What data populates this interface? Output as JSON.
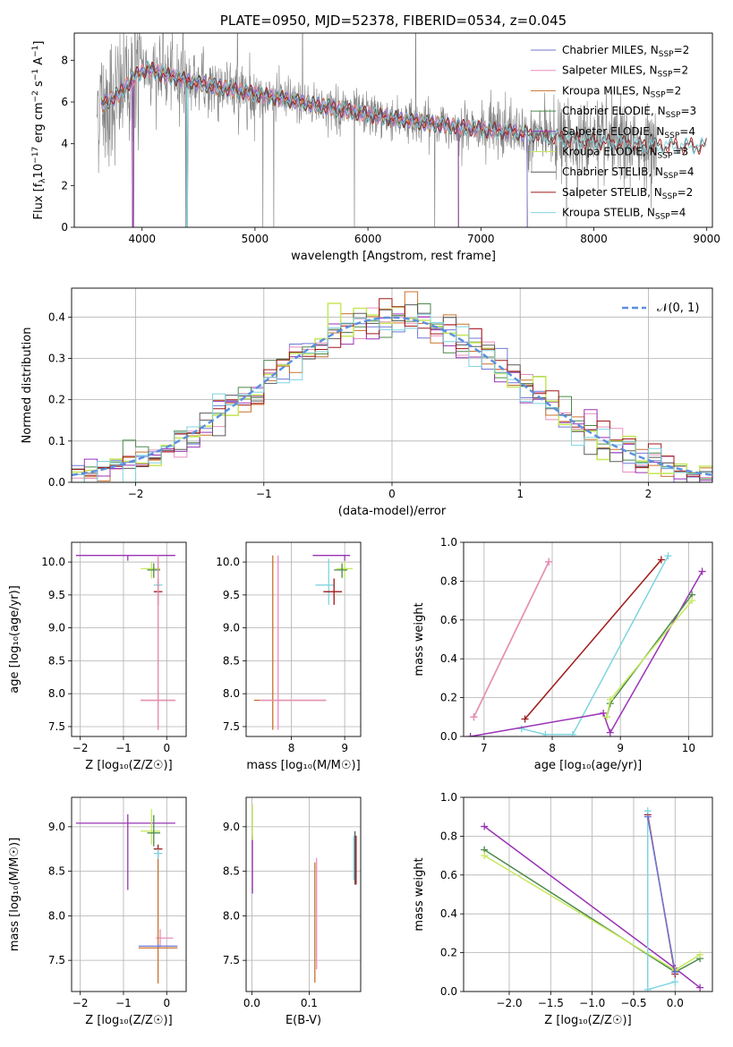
{
  "colors": {
    "Chabrier MILES": "#6f79d6",
    "Salpeter MILES": "#e88fbf",
    "Kroupa MILES": "#c9722c",
    "Chabrier ELODIE": "#4b8a4b",
    "Salpeter ELODIE": "#9a33b6",
    "Kroupa ELODIE": "#c8e85f",
    "Chabrier STELIB": "#5a5a5a",
    "Salpeter STELIB": "#a01818",
    "Kroupa STELIB": "#7fd4e0",
    "data_line": "#808080",
    "normal": "#5b8fe0",
    "grid": "#b0b0b0"
  },
  "chart_data": [
    {
      "type": "line",
      "title": "PLATE=0950, MJD=52378, FIBERID=0534, z=0.045",
      "xlabel": "wavelength [Angstrom, rest frame]",
      "ylabel_parts": {
        "base": "Flux [f",
        "sub": "λ",
        "mid": "10",
        "sup1": "−17",
        "rest": " erg cm",
        "sup2": "−2",
        "s": " s",
        "sup3": "−1",
        "a": " A",
        "sup4": "−1",
        "end": "]"
      },
      "xlim": [
        3400,
        9050
      ],
      "ylim": [
        0,
        9.3
      ],
      "xticks": [
        4000,
        5000,
        6000,
        7000,
        8000,
        9000
      ],
      "yticks": [
        0,
        2,
        4,
        6,
        8
      ],
      "legend_position": "upper right",
      "legend": [
        {
          "name": "Chabrier MILES",
          "n": "2"
        },
        {
          "name": "Salpeter MILES",
          "n": "2"
        },
        {
          "name": "Kroupa MILES",
          "n": "2"
        },
        {
          "name": "Chabrier ELODIE",
          "n": "3"
        },
        {
          "name": "Salpeter ELODIE",
          "n": "4"
        },
        {
          "name": "Kroupa ELODIE",
          "n": "3"
        },
        {
          "name": "Chabrier STELIB",
          "n": "4"
        },
        {
          "name": "Salpeter STELIB",
          "n": "2"
        },
        {
          "name": "Kroupa STELIB",
          "n": "4"
        }
      ],
      "legend_eq": "=",
      "legend_sub": "SSP",
      "legend_prefix": ", N",
      "data_range": [
        3600,
        8560
      ],
      "model_end": {
        "MILES": 7410,
        "ELODIE": 6800,
        "STELIB": 9000
      },
      "continuum": [
        [
          3650,
          5.9
        ],
        [
          3800,
          6.4
        ],
        [
          3950,
          7.3
        ],
        [
          4050,
          7.6
        ],
        [
          4200,
          7.3
        ],
        [
          4500,
          6.9
        ],
        [
          5000,
          6.4
        ],
        [
          5500,
          5.9
        ],
        [
          6000,
          5.4
        ],
        [
          6500,
          5.0
        ],
        [
          7000,
          4.7
        ],
        [
          7400,
          4.5
        ],
        [
          7800,
          4.2
        ],
        [
          8200,
          4.05
        ],
        [
          8500,
          3.9
        ]
      ]
    },
    {
      "type": "step",
      "xlabel": "(data-model)/error",
      "ylabel": "Normed distribution",
      "xlim": [
        -2.5,
        2.5
      ],
      "ylim": [
        0,
        0.47
      ],
      "xticks": [
        -2,
        -1,
        0,
        1,
        2
      ],
      "yticks": [
        0.0,
        0.1,
        0.2,
        0.3,
        0.4
      ],
      "legend": [
        {
          "name": "𝒩(0, 1)"
        }
      ],
      "bin_width": 0.1,
      "bins_start": -2.5,
      "reference": "standard normal"
    },
    {
      "type": "errorbar",
      "xlabel": "Z [log₁₀(Z/Z☉)]",
      "ylabel": "age  [log₁₀(age/yr)]",
      "xlim": [
        -2.2,
        0.45
      ],
      "ylim": [
        7.35,
        10.3
      ],
      "xticks": [
        -2,
        -1,
        0
      ],
      "yticks": [
        7.5,
        8.0,
        8.5,
        9.0,
        9.5,
        10.0
      ],
      "points": [
        {
          "model": "Salpeter ELODIE",
          "x": -0.9,
          "y": 10.1,
          "xerr": [
            1.2,
            1.1
          ],
          "yerr": [
            0.08,
            0
          ]
        },
        {
          "model": "Kroupa ELODIE",
          "x": -0.35,
          "y": 9.9,
          "xerr": [
            0.25,
            0.2
          ],
          "yerr": [
            0.15,
            0.1
          ]
        },
        {
          "model": "Chabrier ELODIE",
          "x": -0.3,
          "y": 9.88,
          "xerr": [
            0.15,
            0.15
          ],
          "yerr": [
            0.12,
            0.1
          ]
        },
        {
          "model": "Kroupa STELIB",
          "x": -0.2,
          "y": 9.65,
          "xerr": [
            0.1,
            0.1
          ],
          "yerr": [
            0.3,
            0.05
          ]
        },
        {
          "model": "Salpeter STELIB",
          "x": -0.2,
          "y": 9.55,
          "xerr": [
            0.1,
            0.1
          ],
          "yerr": [
            0.2,
            0.2
          ]
        },
        {
          "model": "Kroupa MILES",
          "x": -0.2,
          "y": 7.9,
          "xerr": [
            0.4,
            0.4
          ],
          "yerr": [
            0.45,
            2.2
          ]
        },
        {
          "model": "Salpeter MILES",
          "x": -0.2,
          "y": 7.9,
          "xerr": [
            0.4,
            0.4
          ],
          "yerr": [
            0.45,
            2.2
          ]
        }
      ]
    },
    {
      "type": "errorbar",
      "xlabel": "mass [log₁₀(M/M☉)]",
      "ylabel": "",
      "xlim": [
        7.15,
        9.3
      ],
      "ylim": [
        7.35,
        10.3
      ],
      "xticks": [
        8,
        9
      ],
      "yticks": [
        7.5,
        8.0,
        8.5,
        9.0,
        9.5,
        10.0
      ],
      "points": [
        {
          "model": "Salpeter ELODIE",
          "x": 9.0,
          "y": 10.1,
          "xerr": [
            0.6,
            0.1
          ],
          "yerr": [
            0.08,
            0
          ]
        },
        {
          "model": "Kroupa ELODIE",
          "x": 9.0,
          "y": 9.9,
          "xerr": [
            0.15,
            0.15
          ],
          "yerr": [
            0.15,
            0.1
          ]
        },
        {
          "model": "Chabrier ELODIE",
          "x": 8.95,
          "y": 9.88,
          "xerr": [
            0.15,
            0.1
          ],
          "yerr": [
            0.12,
            0.1
          ]
        },
        {
          "model": "Kroupa STELIB",
          "x": 8.7,
          "y": 9.65,
          "xerr": [
            0.25,
            0.1
          ],
          "yerr": [
            0.3,
            0.4
          ]
        },
        {
          "model": "Salpeter STELIB",
          "x": 8.8,
          "y": 9.55,
          "xerr": [
            0.2,
            0.15
          ],
          "yerr": [
            0.2,
            0.2
          ]
        },
        {
          "model": "Kroupa MILES",
          "x": 7.65,
          "y": 7.9,
          "xerr": [
            0.35,
            1.0
          ],
          "yerr": [
            0.45,
            2.2
          ]
        },
        {
          "model": "Salpeter MILES",
          "x": 7.75,
          "y": 7.9,
          "xerr": [
            0.35,
            0.9
          ],
          "yerr": [
            0.45,
            2.2
          ]
        }
      ]
    },
    {
      "type": "line",
      "xlabel": "age  [log₁₀(age/yr)]",
      "ylabel": "mass weight",
      "xlim": [
        6.7,
        10.35
      ],
      "ylim": [
        0,
        1.0
      ],
      "xticks": [
        7,
        8,
        9,
        10
      ],
      "yticks": [
        0.0,
        0.2,
        0.4,
        0.6,
        0.8,
        1.0
      ],
      "series": [
        {
          "model": "Kroupa MILES",
          "x": [
            6.85,
            7.95
          ],
          "y": [
            0.1,
            0.9
          ]
        },
        {
          "model": "Salpeter MILES",
          "x": [
            6.85,
            7.95
          ],
          "y": [
            0.1,
            0.9
          ]
        },
        {
          "model": "Salpeter STELIB",
          "x": [
            7.6,
            9.6
          ],
          "y": [
            0.09,
            0.91
          ]
        },
        {
          "model": "Kroupa STELIB",
          "x": [
            7.55,
            7.9,
            8.3,
            9.7
          ],
          "y": [
            0.04,
            0.01,
            0.01,
            0.93
          ]
        },
        {
          "model": "Salpeter ELODIE",
          "x": [
            6.8,
            8.75,
            8.85,
            10.2
          ],
          "y": [
            0.0,
            0.12,
            0.02,
            0.85
          ]
        },
        {
          "model": "Chabrier ELODIE",
          "x": [
            8.8,
            8.85,
            10.05
          ],
          "y": [
            0.1,
            0.17,
            0.73
          ]
        },
        {
          "model": "Kroupa ELODIE",
          "x": [
            8.8,
            8.85,
            10.05
          ],
          "y": [
            0.1,
            0.19,
            0.7
          ]
        }
      ]
    },
    {
      "type": "errorbar",
      "xlabel": "Z [log₁₀(Z/Z☉)]",
      "ylabel": "mass [log₁₀(M/M☉)]",
      "xlim": [
        -2.2,
        0.45
      ],
      "ylim": [
        7.15,
        9.33
      ],
      "xticks": [
        -2,
        -1,
        0
      ],
      "yticks": [
        7.5,
        8.0,
        8.5,
        9.0
      ],
      "points": [
        {
          "model": "Salpeter ELODIE",
          "x": -0.9,
          "y": 9.04,
          "xerr": [
            1.2,
            1.1
          ],
          "yerr": [
            0.75,
            0.1
          ]
        },
        {
          "model": "Kroupa ELODIE",
          "x": -0.35,
          "y": 8.95,
          "xerr": [
            0.25,
            0.2
          ],
          "yerr": [
            0.15,
            0.25
          ]
        },
        {
          "model": "Chabrier ELODIE",
          "x": -0.3,
          "y": 8.93,
          "xerr": [
            0.15,
            0.15
          ],
          "yerr": [
            0.15,
            0.2
          ]
        },
        {
          "model": "Salpeter STELIB",
          "x": -0.2,
          "y": 8.75,
          "xerr": [
            0.1,
            0.1
          ],
          "yerr": [
            0.1,
            0.05
          ]
        },
        {
          "model": "Kroupa STELIB",
          "x": -0.2,
          "y": 8.7,
          "xerr": [
            0.1,
            0.1
          ],
          "yerr": [
            0.3,
            0.05
          ]
        },
        {
          "model": "Salpeter MILES",
          "x": -0.15,
          "y": 7.75,
          "xerr": [
            0.1,
            0.3
          ],
          "yerr": [
            0.1,
            0.1
          ]
        },
        {
          "model": "Kroupa MILES",
          "x": -0.2,
          "y": 7.64,
          "xerr": [
            0.45,
            0.45
          ],
          "yerr": [
            0.4,
            1.0
          ]
        },
        {
          "model": "Chabrier MILES",
          "x": -0.2,
          "y": 7.66,
          "xerr": [
            0.45,
            0.45
          ],
          "yerr": [
            0.02,
            0.02
          ]
        }
      ]
    },
    {
      "type": "errorbar",
      "xlabel": "E(B-V)",
      "ylabel": "",
      "xlim": [
        -0.01,
        0.19
      ],
      "ylim": [
        7.15,
        9.33
      ],
      "xticks": [
        0.0,
        0.1
      ],
      "xtick_labels": [
        "0.0",
        "0.1"
      ],
      "yticks": [
        7.5,
        8.0,
        8.5,
        9.0
      ],
      "points": [
        {
          "model": "Salpeter ELODIE",
          "x": 0.001,
          "y": 8.6,
          "xerr": [
            0,
            0
          ],
          "yerr": [
            0.35,
            0.3
          ]
        },
        {
          "model": "Kroupa ELODIE",
          "x": 0.001,
          "y": 8.95,
          "xerr": [
            0,
            0
          ],
          "yerr": [
            0.1,
            0.3
          ]
        },
        {
          "model": "Kroupa MILES",
          "x": 0.11,
          "y": 7.9,
          "xerr": [
            0,
            0
          ],
          "yerr": [
            0.65,
            0.7
          ]
        },
        {
          "model": "Salpeter MILES",
          "x": 0.113,
          "y": 8.0,
          "xerr": [
            0,
            0
          ],
          "yerr": [
            0.6,
            0.65
          ]
        },
        {
          "model": "Chabrier STELIB",
          "x": 0.18,
          "y": 8.65,
          "xerr": [
            0,
            0
          ],
          "yerr": [
            0.3,
            0.3
          ]
        },
        {
          "model": "Kroupa STELIB",
          "x": 0.178,
          "y": 8.65,
          "xerr": [
            0,
            0
          ],
          "yerr": [
            0.25,
            0.25
          ]
        },
        {
          "model": "Salpeter STELIB",
          "x": 0.182,
          "y": 8.65,
          "xerr": [
            0,
            0
          ],
          "yerr": [
            0.3,
            0.25
          ]
        }
      ]
    },
    {
      "type": "line",
      "xlabel": "Z [log₁₀(Z/Z☉)]",
      "ylabel": "mass weight",
      "xlim": [
        -2.55,
        0.45
      ],
      "ylim": [
        0,
        1.0
      ],
      "xticks": [
        -2.0,
        -1.5,
        -1.0,
        -0.5,
        0.0
      ],
      "xtick_labels": [
        "−2.0",
        "−1.5",
        "−1.0",
        "−0.5",
        "0.0"
      ],
      "yticks": [
        0.0,
        0.2,
        0.4,
        0.6,
        0.8,
        1.0
      ],
      "series": [
        {
          "model": "Salpeter ELODIE",
          "x": [
            -2.3,
            0.0,
            0.3
          ],
          "y": [
            0.85,
            0.12,
            0.02
          ]
        },
        {
          "model": "Chabrier ELODIE",
          "x": [
            -2.3,
            0.0,
            0.3
          ],
          "y": [
            0.73,
            0.1,
            0.17
          ]
        },
        {
          "model": "Kroupa ELODIE",
          "x": [
            -2.3,
            0.0,
            0.3
          ],
          "y": [
            0.7,
            0.11,
            0.19
          ]
        },
        {
          "model": "Salpeter STELIB",
          "x": [
            -0.33,
            0.0
          ],
          "y": [
            0.91,
            0.09
          ]
        },
        {
          "model": "Kroupa STELIB",
          "x": [
            -0.33,
            -0.33,
            0.0
          ],
          "y": [
            0.93,
            0.01,
            0.05
          ]
        },
        {
          "model": "Chabrier MILES",
          "x": [
            -0.33,
            0.0
          ],
          "y": [
            0.9,
            0.1
          ]
        }
      ]
    }
  ]
}
